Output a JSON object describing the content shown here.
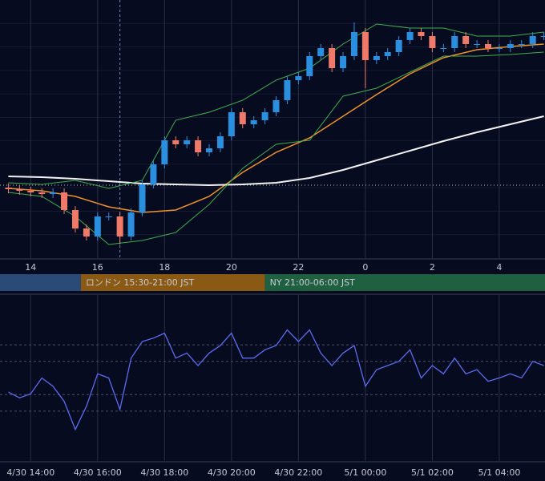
{
  "chart_data": [
    {
      "type": "candlestick",
      "x": [
        -40,
        -20,
        0,
        20,
        40,
        60,
        80,
        100,
        120,
        140,
        160,
        180,
        200,
        220,
        240,
        260,
        280,
        300,
        320,
        340,
        360,
        380,
        400,
        420,
        440,
        460,
        480,
        500,
        520,
        540,
        560,
        580,
        600,
        620,
        640,
        660,
        680,
        700,
        720,
        740,
        760,
        780,
        800,
        820,
        840,
        860,
        880,
        900,
        920
      ],
      "open": [
        86,
        84,
        82,
        80,
        78,
        80,
        58,
        35,
        25,
        50,
        50,
        25,
        55,
        90,
        115,
        145,
        140,
        145,
        130,
        135,
        150,
        180,
        165,
        170,
        180,
        195,
        220,
        225,
        250,
        260,
        235,
        250,
        280,
        245,
        250,
        255,
        270,
        280,
        275,
        260,
        260,
        275,
        265,
        265,
        260,
        260,
        265,
        265,
        275
      ],
      "high": [
        91,
        89,
        87,
        85,
        85,
        85,
        63,
        40,
        55,
        55,
        55,
        60,
        95,
        120,
        150,
        150,
        150,
        150,
        140,
        155,
        185,
        185,
        175,
        185,
        200,
        225,
        230,
        255,
        265,
        265,
        255,
        292,
        285,
        255,
        260,
        275,
        285,
        285,
        280,
        265,
        280,
        280,
        270,
        270,
        265,
        270,
        270,
        280,
        280
      ],
      "low": [
        79,
        77,
        75,
        73,
        73,
        53,
        30,
        20,
        20,
        45,
        15,
        20,
        50,
        85,
        110,
        135,
        135,
        125,
        125,
        130,
        145,
        160,
        160,
        165,
        175,
        190,
        215,
        220,
        245,
        230,
        230,
        245,
        210,
        240,
        245,
        250,
        265,
        270,
        255,
        255,
        255,
        260,
        260,
        255,
        255,
        255,
        260,
        260,
        270
      ],
      "close": [
        84,
        82,
        80,
        78,
        80,
        58,
        35,
        25,
        50,
        50,
        25,
        55,
        90,
        115,
        145,
        140,
        145,
        130,
        135,
        150,
        180,
        165,
        170,
        180,
        195,
        220,
        225,
        250,
        260,
        235,
        250,
        280,
        245,
        250,
        255,
        270,
        280,
        275,
        260,
        260,
        275,
        265,
        265,
        260,
        260,
        265,
        265,
        275,
        275
      ],
      "up_color": "#2b8fe0",
      "down_color": "#f07a6a",
      "line_x": [
        -40,
        20,
        80,
        140,
        200,
        260,
        320,
        380,
        440,
        500,
        560,
        620,
        680,
        740,
        800,
        860,
        920
      ],
      "lines": [
        {
          "color": "#f0922a",
          "width": 1.5,
          "values": [
            85,
            82,
            75,
            62,
            55,
            58,
            75,
            105,
            130,
            148,
            175,
            202,
            228,
            248,
            258,
            262,
            265
          ]
        },
        {
          "color": "#f2f2f2",
          "width": 2,
          "values": [
            100,
            99,
            97,
            94,
            91,
            90,
            89,
            90,
            92,
            98,
            108,
            120,
            132,
            144,
            155,
            165,
            175
          ]
        },
        {
          "color": "#3fae4e",
          "width": 1,
          "values": [
            92,
            90,
            95,
            85,
            95,
            170,
            180,
            195,
            220,
            235,
            265,
            290,
            285,
            285,
            275,
            275,
            280
          ]
        },
        {
          "color": "#3fae4e",
          "width": 1,
          "values": [
            80,
            75,
            50,
            15,
            20,
            30,
            65,
            110,
            140,
            145,
            200,
            210,
            230,
            250,
            250,
            252,
            255
          ]
        }
      ],
      "price_line": 89,
      "crosshair_x": 160,
      "sessions": [
        {
          "start": -55,
          "end": 90,
          "color": "#2a4a78"
        },
        {
          "name": "ロンドン 15:30-21:00 JST",
          "start": 90,
          "end": 420,
          "color": "#8a5a14"
        },
        {
          "name": "NY 21:00-06:00 JST",
          "start": 420,
          "end": 922,
          "color": "#1f6040"
        }
      ],
      "xlim": [
        -55,
        922
      ],
      "ylim": [
        -2,
        320
      ],
      "xticks": [
        {
          "value": 0,
          "label": "14"
        },
        {
          "value": 120,
          "label": "16"
        },
        {
          "value": 240,
          "label": "18"
        },
        {
          "value": 360,
          "label": "20"
        },
        {
          "value": 480,
          "label": "22"
        },
        {
          "value": 600,
          "label": "0"
        },
        {
          "value": 720,
          "label": "2"
        },
        {
          "value": 840,
          "label": "4"
        }
      ],
      "grid": true
    },
    {
      "type": "line",
      "x": [
        -40,
        -20,
        0,
        20,
        40,
        60,
        80,
        100,
        120,
        140,
        160,
        180,
        200,
        220,
        240,
        260,
        280,
        300,
        320,
        340,
        360,
        380,
        400,
        420,
        440,
        460,
        480,
        500,
        520,
        540,
        560,
        580,
        600,
        620,
        640,
        660,
        680,
        700,
        720,
        740,
        760,
        780,
        800,
        820,
        840,
        860,
        880,
        900,
        920
      ],
      "values": [
        41.5,
        38,
        40.5,
        50,
        45,
        36,
        19,
        33,
        52.5,
        50,
        31,
        62,
        72,
        74,
        77,
        62,
        65,
        57.5,
        65,
        69.5,
        77,
        62,
        62,
        67,
        69.5,
        79,
        72,
        79,
        65,
        57.5,
        65,
        69.5,
        45,
        55,
        57.5,
        60,
        67,
        50,
        57.5,
        52.5,
        62,
        52.5,
        55,
        48,
        50,
        52.5,
        50,
        60,
        57.5
      ],
      "color": "#5b6cf0",
      "levels": [
        30,
        40,
        60,
        70
      ],
      "xlim": [
        -55,
        922
      ],
      "ylim": [
        0,
        100
      ],
      "xticks": [
        {
          "value": 0,
          "label": "4/30 14:00"
        },
        {
          "value": 120,
          "label": "4/30 16:00"
        },
        {
          "value": 240,
          "label": "4/30 18:00"
        },
        {
          "value": 360,
          "label": "4/30 20:00"
        },
        {
          "value": 480,
          "label": "4/30 22:00"
        },
        {
          "value": 600,
          "label": "5/1 00:00"
        },
        {
          "value": 720,
          "label": "5/1 02:00"
        },
        {
          "value": 840,
          "label": "5/1 04:00"
        }
      ],
      "grid": true
    }
  ]
}
